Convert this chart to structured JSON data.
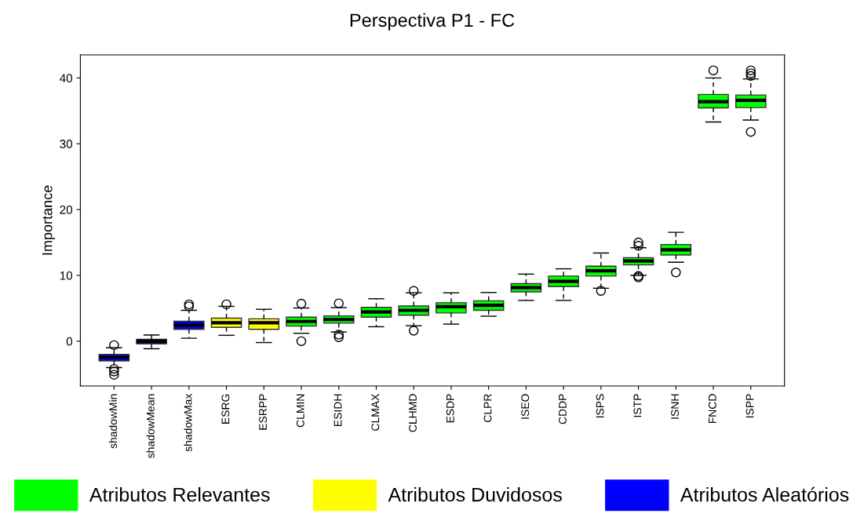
{
  "chart_data": {
    "type": "box",
    "title": "Perspectiva P1 - FC",
    "ylabel": "Importance",
    "categories": [
      "shadowMin",
      "shadowMean",
      "shadowMax",
      "ESRG",
      "ESRPP",
      "CLMIN",
      "ESIDH",
      "CLMAX",
      "CLHMD",
      "ESDP",
      "CLPR",
      "ISEO",
      "CDDP",
      "ISPS",
      "ISTP",
      "ISNH",
      "FNCD",
      "ISPP"
    ],
    "ylim": [
      -6.8,
      43.5
    ],
    "yticks": [
      0,
      10,
      20,
      30,
      40
    ],
    "grid": false,
    "legend": "bottom",
    "series": [
      {
        "name": "Atributos Relevantes",
        "color": "#00ff00",
        "boxes": [
          null,
          null,
          null,
          null,
          null,
          {
            "low": 1.2,
            "q1": 2.3,
            "median": 3.0,
            "q3": 3.65,
            "high": 5.05,
            "outliers": [
              5.7,
              0.0
            ]
          },
          {
            "low": 1.4,
            "q1": 2.75,
            "median": 3.3,
            "q3": 3.85,
            "high": 5.1,
            "outliers": [
              5.75,
              1.0,
              0.6
            ]
          },
          {
            "low": 2.2,
            "q1": 3.65,
            "median": 4.45,
            "q3": 5.15,
            "high": 6.45
          },
          {
            "low": 2.35,
            "q1": 3.95,
            "median": 4.7,
            "q3": 5.35,
            "high": 7.35,
            "outliers": [
              7.65,
              1.6
            ]
          },
          {
            "low": 2.6,
            "q1": 4.3,
            "median": 5.25,
            "q3": 5.85,
            "high": 7.35
          },
          {
            "low": 3.8,
            "q1": 4.7,
            "median": 5.45,
            "q3": 6.15,
            "high": 7.4
          },
          {
            "low": 6.2,
            "q1": 7.5,
            "median": 8.15,
            "q3": 8.75,
            "high": 10.2
          },
          {
            "low": 6.2,
            "q1": 8.3,
            "median": 9.1,
            "q3": 9.9,
            "high": 11.0
          },
          {
            "low": 8.05,
            "q1": 9.9,
            "median": 10.7,
            "q3": 11.4,
            "high": 13.4,
            "outliers": [
              7.65
            ]
          },
          {
            "low": 10.0,
            "q1": 11.6,
            "median": 12.2,
            "q3": 12.7,
            "high": 14.2,
            "outliers": [
              15.0,
              14.5,
              9.7,
              9.9
            ]
          },
          {
            "low": 12.0,
            "q1": 13.1,
            "median": 13.9,
            "q3": 14.7,
            "high": 16.55,
            "outliers": [
              10.45
            ]
          },
          {
            "low": 33.3,
            "q1": 35.45,
            "median": 36.4,
            "q3": 37.5,
            "high": 40.0,
            "outliers": [
              41.15
            ]
          },
          {
            "low": 33.6,
            "q1": 35.5,
            "median": 36.6,
            "q3": 37.4,
            "high": 39.85,
            "outliers": [
              41.15,
              40.7,
              40.3,
              31.8
            ]
          }
        ]
      },
      {
        "name": "Atributos Duvidosos",
        "color": "#ffff00",
        "boxes": [
          null,
          null,
          null,
          {
            "low": 0.9,
            "q1": 2.1,
            "median": 2.8,
            "q3": 3.5,
            "high": 5.3,
            "outliers": [
              5.6
            ]
          },
          {
            "low": -0.2,
            "q1": 1.8,
            "median": 2.8,
            "q3": 3.4,
            "high": 4.85
          },
          null,
          null,
          null,
          null,
          null,
          null,
          null,
          null,
          null,
          null,
          null,
          null,
          null
        ]
      },
      {
        "name": "Atributos Aleatórios",
        "color": "#0000ff",
        "boxes": [
          {
            "low": -4.0,
            "q1": -3.0,
            "median": -2.45,
            "q3": -2.0,
            "high": -1.0,
            "outliers": [
              -0.6,
              -4.2,
              -4.6,
              -5.1
            ]
          },
          {
            "low": -1.15,
            "q1": -0.4,
            "median": 0.0,
            "q3": 0.3,
            "high": 0.95
          },
          {
            "low": 0.45,
            "q1": 1.8,
            "median": 2.45,
            "q3": 3.05,
            "high": 4.7,
            "outliers": [
              5.3,
              5.6
            ]
          },
          null,
          null,
          null,
          null,
          null,
          null,
          null,
          null,
          null,
          null,
          null,
          null,
          null,
          null,
          null
        ]
      }
    ]
  }
}
